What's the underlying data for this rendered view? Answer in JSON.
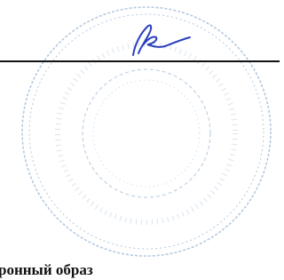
{
  "document": {
    "footer_fragment": "ронный образ"
  }
}
